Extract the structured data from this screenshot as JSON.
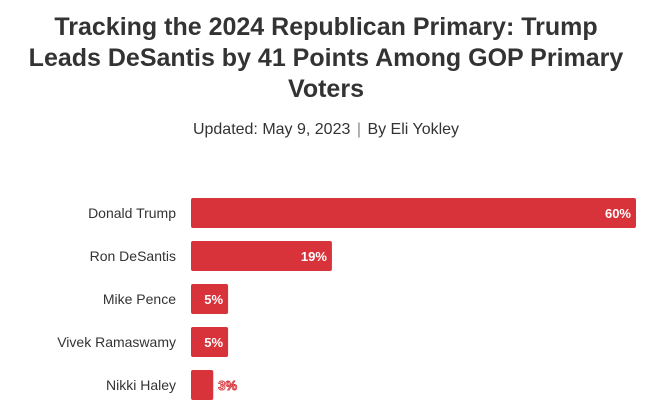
{
  "header": {
    "title": "Tracking the 2024 Republican Primary: Trump Leads DeSantis by 41 Points Among GOP Primary Voters",
    "updated": "Updated: May 9, 2023",
    "separator": "|",
    "byline": "By Eli Yokley"
  },
  "colors": {
    "bar": "#d8323a",
    "inside_label": "#ffffff",
    "outside_label": "#d8323a",
    "text": "#333333"
  },
  "chart_data": {
    "type": "bar",
    "orientation": "horizontal",
    "title": "Tracking the 2024 Republican Primary: Trump Leads DeSantis by 41 Points Among GOP Primary Voters",
    "subtitle": "Updated: May 9, 2023 | By Eli Yokley",
    "categories": [
      "Donald Trump",
      "Ron DeSantis",
      "Mike Pence",
      "Vivek Ramaswamy",
      "Nikki Haley"
    ],
    "values": [
      60,
      19,
      5,
      5,
      3
    ],
    "data_labels": [
      "60%",
      "19%",
      "5%",
      "5%",
      "3%"
    ],
    "xlim": [
      0,
      60
    ],
    "xlabel": "",
    "ylabel": "",
    "grid": false,
    "legend": "none"
  }
}
